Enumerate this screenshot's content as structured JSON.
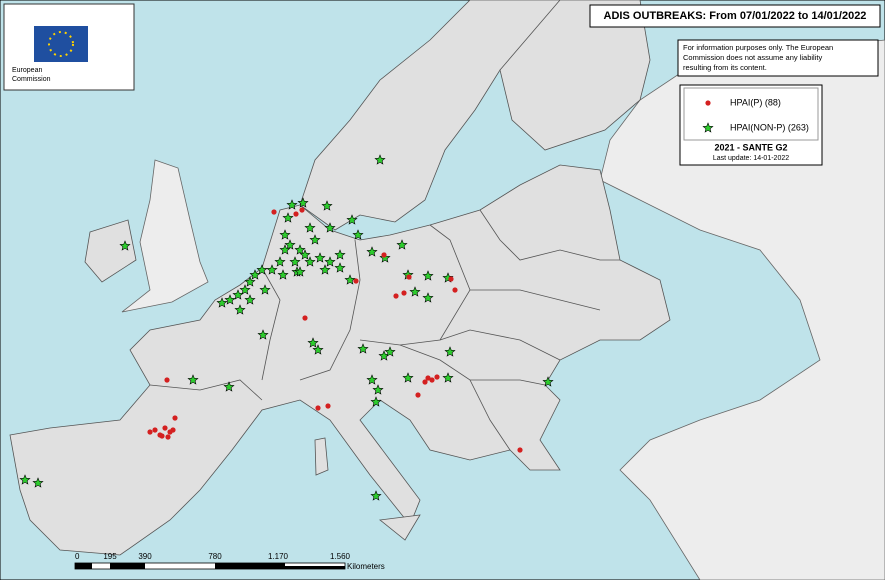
{
  "logo": {
    "text_1": "European",
    "text_2": "Commission"
  },
  "title": "ADIS OUTBREAKS: From 07/01/2022 to 14/01/2022",
  "disclaimer": [
    "For information purposes only. The European",
    "Commission does not assume any liability",
    "resulting from its content."
  ],
  "legend": {
    "items": [
      {
        "label": "HPAI(P) (88)",
        "color": "#d42020",
        "symbol": "dot"
      },
      {
        "label": "HPAI(NON-P) (263)",
        "color": "#2ecc2e",
        "symbol": "star"
      }
    ],
    "footer": "2021 - SANTE G2",
    "update": "Last update: 14-01-2022"
  },
  "scale": {
    "labels": [
      "0",
      "195",
      "390",
      "780",
      "1.170",
      "1.560"
    ],
    "unit": "Kilometers"
  }
}
